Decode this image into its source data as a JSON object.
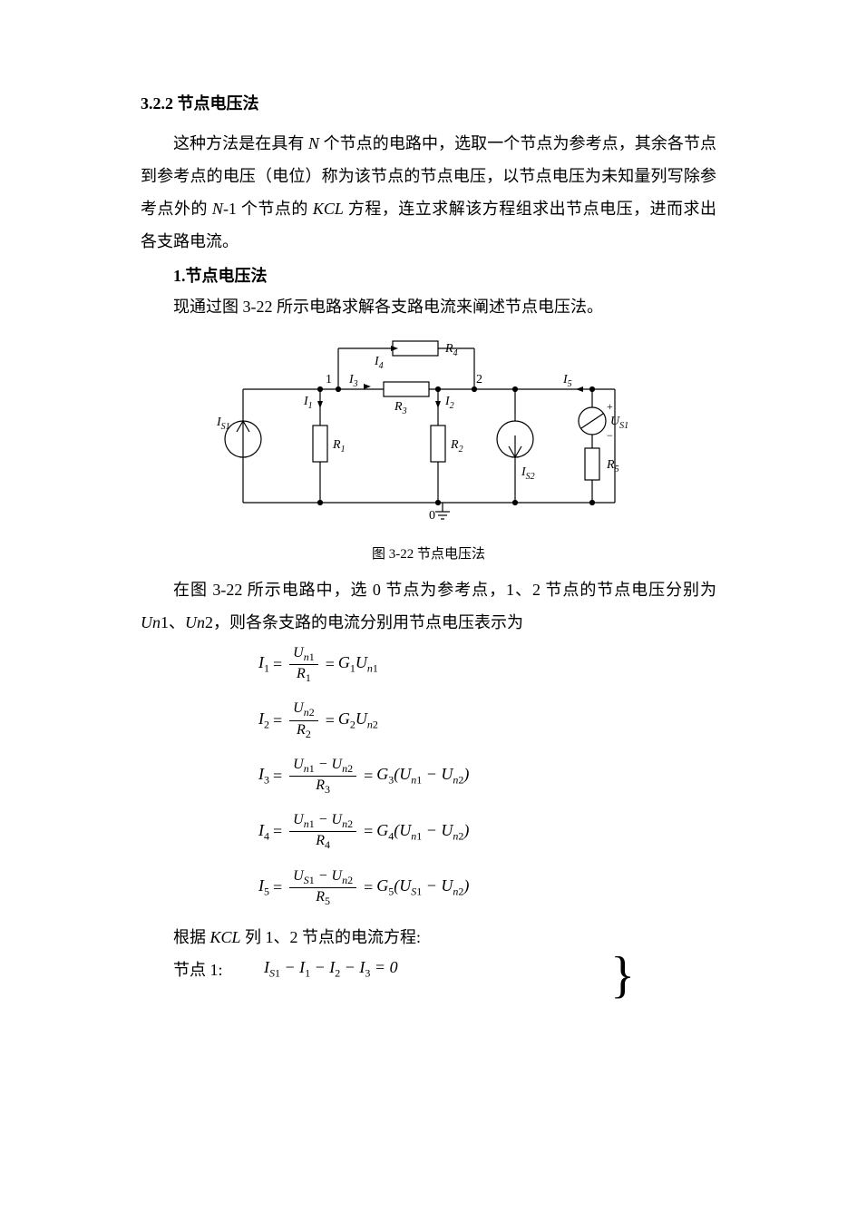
{
  "section": {
    "number": "3.2.2",
    "title": "节点电压法"
  },
  "para1": "这种方法是在具有 <span class='italic-en'>N</span> 个节点的电路中，选取一个节点为参考点，其余各节点到参考点的电压（电位）称为该节点的节点电压，以节点电压为未知量列写除参考点外的 <span class='italic-en'>N</span>-1 个节点的 <span class='italic-en'>KCL</span> 方程，连立求解该方程组求出节点电压，进而求出各支路电流。",
  "sub1": {
    "num": "1.",
    "title": "节点电压法"
  },
  "para2": "现通过图 3-22 所示电路求解各支路电流来阐述节点电压法。",
  "figure": {
    "caption": "图 3-22 节点电压法",
    "labels": {
      "Is1": "I",
      "Is1sub": "S1",
      "Is2": "I",
      "Is2sub": "S2",
      "Us1": "U",
      "Us1sub": "S1",
      "R1": "R",
      "R1sub": "1",
      "R2": "R",
      "R2sub": "2",
      "R3": "R",
      "R3sub": "3",
      "R4": "R",
      "R4sub": "4",
      "R5": "R",
      "R5sub": "5",
      "I1": "I",
      "I1sub": "1",
      "I2": "I",
      "I2sub": "2",
      "I3": "I",
      "I3sub": "3",
      "I4": "I",
      "I4sub": "4",
      "I5": "I",
      "I5sub": "5",
      "node0": "0",
      "node1": "1",
      "node2": "2",
      "plus": "+",
      "minus": "−"
    },
    "style": {
      "stroke": "#000000",
      "stroke_width": 1.2,
      "bg": "#ffffff",
      "font_size": 14,
      "sub_font_size": 10
    }
  },
  "para3_a": "在图 3-22 所示电路中，选 0 节点为参考点，1、2 节点的节点电压分别为 ",
  "para3_b": "、",
  "para3_c": "，则各条支路的电流分别用节点电压表示为",
  "Un1": "Un",
  "Un1sub": "1",
  "Un2": "Un",
  "Un2sub": "2",
  "equations": [
    {
      "lhs": "I",
      "lhs_sub": "1",
      "num": "U<sub class='sub-it'>n</sub><sub class='sub'>1</sub>",
      "den": "R<sub class='sub'>1</sub>",
      "rhs": "G<sub class='sub'>1</sub>U<sub class='sub-it'>n</sub><sub class='sub'>1</sub>"
    },
    {
      "lhs": "I",
      "lhs_sub": "2",
      "num": "U<sub class='sub-it'>n</sub><sub class='sub'>2</sub>",
      "den": "R<sub class='sub'>2</sub>",
      "rhs": "G<sub class='sub'>2</sub>U<sub class='sub-it'>n</sub><sub class='sub'>2</sub>"
    },
    {
      "lhs": "I",
      "lhs_sub": "3",
      "num": "U<sub class='sub-it'>n</sub><sub class='sub'>1</sub> − U<sub class='sub-it'>n</sub><sub class='sub'>2</sub>",
      "den": "R<sub class='sub'>3</sub>",
      "rhs": "G<sub class='sub'>3</sub>(U<sub class='sub-it'>n</sub><sub class='sub'>1</sub> − U<sub class='sub-it'>n</sub><sub class='sub'>2</sub>)"
    },
    {
      "lhs": "I",
      "lhs_sub": "4",
      "num": "U<sub class='sub-it'>n</sub><sub class='sub'>1</sub> − U<sub class='sub-it'>n</sub><sub class='sub'>2</sub>",
      "den": "R<sub class='sub'>4</sub>",
      "rhs": "G<sub class='sub'>4</sub>(U<sub class='sub-it'>n</sub><sub class='sub'>1</sub> − U<sub class='sub-it'>n</sub><sub class='sub'>2</sub>)"
    },
    {
      "lhs": "I",
      "lhs_sub": "5",
      "num": "U<sub class='sub-it'>S</sub><sub class='sub'>1</sub> − U<sub class='sub-it'>n</sub><sub class='sub'>2</sub>",
      "den": "R<sub class='sub'>5</sub>",
      "rhs": "G<sub class='sub'>5</sub>(U<sub class='sub-it'>S</sub><sub class='sub'>1</sub> − U<sub class='sub-it'>n</sub><sub class='sub'>2</sub>)"
    }
  ],
  "kcl_line": "根据 <span class='italic-en'>KCL</span> 列 1、2 节点的电流方程:",
  "node1_label": "节点 1:",
  "node1_expr": "I<sub class='sub-it'>S</sub><sub class='sub'>1</sub> − I<sub class='sub'>1</sub> − I<sub class='sub'>2</sub> − I<sub class='sub'>3</sub> = 0"
}
